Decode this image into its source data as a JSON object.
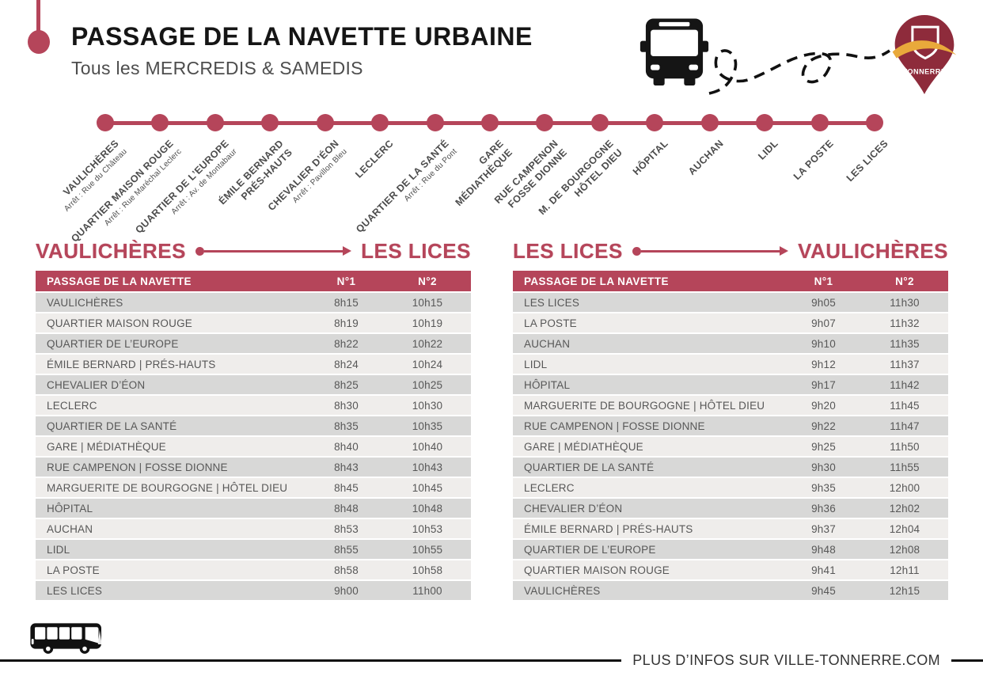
{
  "header": {
    "title": "PASSAGE DE LA NAVETTE URBAINE",
    "subtitle": "Tous les MERCREDIS & SAMEDIS"
  },
  "logo": {
    "text": "TONNERRE"
  },
  "colors": {
    "accent": "#b5455a",
    "pin": "#8e2b3b",
    "swoosh": "#e9a93b",
    "row_dark": "#d8d8d7",
    "row_light": "#efedeb"
  },
  "route": {
    "stops": [
      {
        "name": "VAULICHÈRES",
        "detail": "Arrêt : Rue du Château"
      },
      {
        "name": "QUARTIER MAISON ROUGE",
        "detail": "Arrêt : Rue Maréchal Leclerc"
      },
      {
        "name": "QUARTIER DE L’EUROPE",
        "detail": "Arrêt : Av. de Montabaur"
      },
      {
        "name": "ÉMILE BERNARD\nPRÉS-HAUTS",
        "detail": ""
      },
      {
        "name": "CHEVALIER D’ÉON",
        "detail": "Arrêt : Pavillon Bleu"
      },
      {
        "name": "LECLERC",
        "detail": ""
      },
      {
        "name": "QUARTIER  DE LA SANTÉ",
        "detail": "Arrêt : Rue du Pont"
      },
      {
        "name": "GARE\nMÉDIATHÈQUE",
        "detail": ""
      },
      {
        "name": "RUE CAMPENON\nFOSSE DIONNE",
        "detail": ""
      },
      {
        "name": "M. DE BOURGOGNE\nHÔTEL DIEU",
        "detail": ""
      },
      {
        "name": "HÔPITAL",
        "detail": ""
      },
      {
        "name": "AUCHAN",
        "detail": ""
      },
      {
        "name": "LIDL",
        "detail": ""
      },
      {
        "name": "LA POSTE",
        "detail": ""
      },
      {
        "name": "LES LICES",
        "detail": ""
      }
    ]
  },
  "table_left": {
    "title_from": "VAULICHÈRES",
    "title_to": "LES LICES",
    "columns": [
      "PASSAGE DE LA NAVETTE",
      "N°1",
      "N°2"
    ],
    "rows": [
      [
        "VAULICHÈRES",
        "8h15",
        "10h15"
      ],
      [
        "QUARTIER MAISON ROUGE",
        "8h19",
        "10h19"
      ],
      [
        "QUARTIER  DE L’EUROPE",
        "8h22",
        "10h22"
      ],
      [
        "ÉMILE BERNARD | PRÉS-HAUTS",
        "8h24",
        "10h24"
      ],
      [
        "CHEVALIER D’ÉON",
        "8h25",
        "10h25"
      ],
      [
        "LECLERC",
        "8h30",
        "10h30"
      ],
      [
        "QUARTIER  DE LA SANTÉ",
        "8h35",
        "10h35"
      ],
      [
        "GARE | MÉDIATHÈQUE",
        "8h40",
        "10h40"
      ],
      [
        "RUE CAMPENON | FOSSE DIONNE",
        "8h43",
        "10h43"
      ],
      [
        "MARGUERITE DE BOURGOGNE | HÔTEL DIEU",
        "8h45",
        "10h45"
      ],
      [
        "HÔPITAL",
        "8h48",
        "10h48"
      ],
      [
        "AUCHAN",
        "8h53",
        "10h53"
      ],
      [
        "LIDL",
        "8h55",
        "10h55"
      ],
      [
        "LA POSTE",
        "8h58",
        "10h58"
      ],
      [
        "LES LICES",
        "9h00",
        "11h00"
      ]
    ]
  },
  "table_right": {
    "title_from": "LES LICES",
    "title_to": "VAULICHÈRES",
    "columns": [
      "PASSAGE DE LA NAVETTE",
      "N°1",
      "N°2"
    ],
    "rows": [
      [
        "LES LICES",
        "9h05",
        "11h30"
      ],
      [
        "LA POSTE",
        "9h07",
        "11h32"
      ],
      [
        "AUCHAN",
        "9h10",
        "11h35"
      ],
      [
        "LIDL",
        "9h12",
        "11h37"
      ],
      [
        "HÔPITAL",
        "9h17",
        "11h42"
      ],
      [
        "MARGUERITE DE BOURGOGNE | HÔTEL DIEU",
        "9h20",
        "11h45"
      ],
      [
        "RUE CAMPENON | FOSSE DIONNE",
        "9h22",
        "11h47"
      ],
      [
        "GARE | MÉDIATHÈQUE",
        "9h25",
        "11h50"
      ],
      [
        "QUARTIER DE LA SANTÉ",
        "9h30",
        "11h55"
      ],
      [
        "LECLERC",
        "9h35",
        "12h00"
      ],
      [
        "CHEVALIER D’ÉON",
        "9h36",
        "12h02"
      ],
      [
        "ÉMILE BERNARD | PRÉS-HAUTS",
        "9h37",
        "12h04"
      ],
      [
        "QUARTIER DE L’EUROPE",
        "9h48",
        "12h08"
      ],
      [
        "QUARTIER MAISON ROUGE",
        "9h41",
        "12h11"
      ],
      [
        "VAULICHÈRES",
        "9h45",
        "12h15"
      ]
    ]
  },
  "footer": {
    "info": "PLUS D’INFOS SUR VILLE-TONNERRE.COM"
  }
}
